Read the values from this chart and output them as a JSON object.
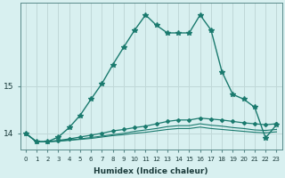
{
  "xlabel": "Humidex (Indice chaleur)",
  "background_color": "#d8f0f0",
  "grid_color": "#c0d8d8",
  "line_color": "#1a7a6e",
  "xlim": [
    -0.5,
    23.5
  ],
  "ylim": [
    13.65,
    16.75
  ],
  "yticks": [
    14,
    15
  ],
  "xticks": [
    0,
    1,
    2,
    3,
    4,
    5,
    6,
    7,
    8,
    9,
    10,
    11,
    12,
    13,
    14,
    15,
    16,
    17,
    18,
    19,
    20,
    21,
    22,
    23
  ],
  "series1_x": [
    0,
    1,
    2,
    3,
    4,
    5,
    6,
    7,
    8,
    9,
    10,
    11,
    12,
    13,
    14,
    15,
    16,
    17,
    18,
    19,
    20,
    21,
    22,
    23
  ],
  "series1_y": [
    14.0,
    13.82,
    13.82,
    13.92,
    14.12,
    14.38,
    14.72,
    15.05,
    15.45,
    15.82,
    16.18,
    16.5,
    16.28,
    16.12,
    16.12,
    16.12,
    16.5,
    16.18,
    15.3,
    14.82,
    14.72,
    14.55,
    13.9,
    14.18
  ],
  "series2_x": [
    0,
    1,
    2,
    3,
    4,
    5,
    6,
    7,
    8,
    9,
    10,
    11,
    12,
    13,
    14,
    15,
    16,
    17,
    18,
    19,
    20,
    21,
    22,
    23
  ],
  "series2_y": [
    14.0,
    13.82,
    13.82,
    13.85,
    13.88,
    13.92,
    13.96,
    14.0,
    14.05,
    14.08,
    14.12,
    14.15,
    14.2,
    14.25,
    14.28,
    14.28,
    14.32,
    14.3,
    14.28,
    14.25,
    14.22,
    14.2,
    14.18,
    14.2
  ],
  "series3_x": [
    0,
    1,
    2,
    3,
    4,
    5,
    6,
    7,
    8,
    9,
    10,
    11,
    12,
    13,
    14,
    15,
    16,
    17,
    18,
    19,
    20,
    21,
    22,
    23
  ],
  "series3_y": [
    14.0,
    13.82,
    13.82,
    13.84,
    13.86,
    13.88,
    13.91,
    13.94,
    13.97,
    14.0,
    14.04,
    14.07,
    14.1,
    14.14,
    14.16,
    14.16,
    14.2,
    14.17,
    14.15,
    14.12,
    14.1,
    14.07,
    14.06,
    14.08
  ],
  "series4_x": [
    0,
    1,
    2,
    3,
    4,
    5,
    6,
    7,
    8,
    9,
    10,
    11,
    12,
    13,
    14,
    15,
    16,
    17,
    18,
    19,
    20,
    21,
    22,
    23
  ],
  "series4_y": [
    14.0,
    13.82,
    13.82,
    13.83,
    13.85,
    13.87,
    13.89,
    13.92,
    13.95,
    13.97,
    14.0,
    14.02,
    14.05,
    14.08,
    14.1,
    14.1,
    14.13,
    14.1,
    14.08,
    14.06,
    14.04,
    14.02,
    14.01,
    14.03
  ]
}
